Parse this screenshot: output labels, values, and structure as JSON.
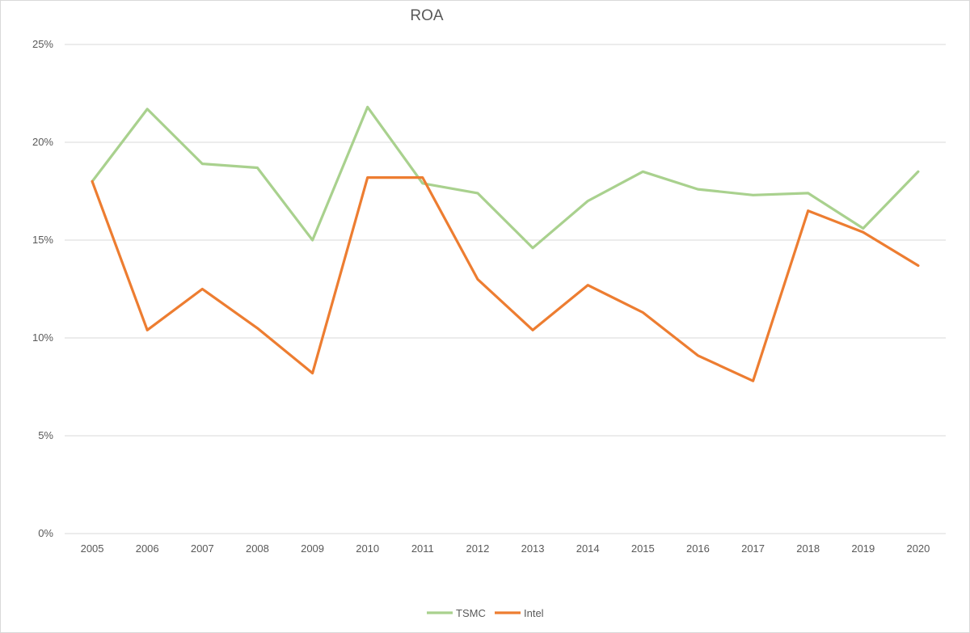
{
  "chart_data": {
    "type": "line",
    "title": "ROA",
    "xlabel": "",
    "ylabel": "",
    "ylim": [
      0,
      0.25
    ],
    "yticks": [
      0,
      0.05,
      0.1,
      0.15,
      0.2,
      0.25
    ],
    "ytick_labels": [
      "0%",
      "5%",
      "10%",
      "15%",
      "20%",
      "25%"
    ],
    "categories": [
      "2005",
      "2006",
      "2007",
      "2008",
      "2009",
      "2010",
      "2011",
      "2012",
      "2013",
      "2014",
      "2015",
      "2016",
      "2017",
      "2018",
      "2019",
      "2020"
    ],
    "grid": "horizontal",
    "legend_position": "bottom",
    "series": [
      {
        "name": "TSMC",
        "color": "#a9d18e",
        "values": [
          0.18,
          0.217,
          0.189,
          0.187,
          0.15,
          0.218,
          0.179,
          0.174,
          0.146,
          0.17,
          0.185,
          0.176,
          0.173,
          0.174,
          0.156,
          0.185
        ]
      },
      {
        "name": "Intel",
        "color": "#ed7d31",
        "values": [
          0.18,
          0.104,
          0.125,
          0.105,
          0.082,
          0.182,
          0.182,
          0.13,
          0.104,
          0.127,
          0.113,
          0.091,
          0.078,
          0.165,
          0.154,
          0.137
        ]
      }
    ]
  }
}
